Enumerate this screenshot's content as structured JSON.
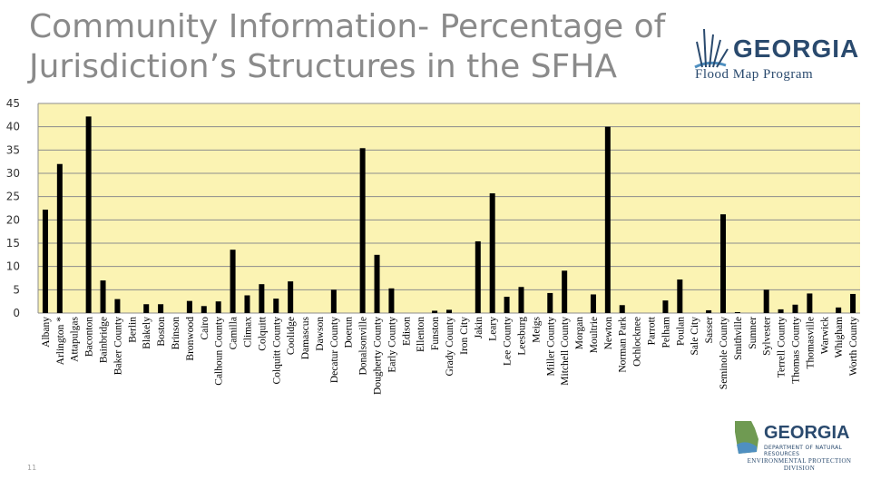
{
  "slide": {
    "title": "Community Information- Percentage of Jurisdiction’s Structures in the SFHA",
    "page_number": "11"
  },
  "logos": {
    "top": {
      "name": "GEORGIA",
      "subtitle": "Flood Map Program"
    },
    "bottom": {
      "name": "GEORGIA",
      "department": "DEPARTMENT OF NATURAL RESOURCES",
      "division": "ENVIRONMENTAL PROTECTION DIVISION"
    }
  },
  "colors": {
    "plot_bg": "#fbf3b3",
    "bar": "#000000",
    "grid": "#8c8c8c",
    "title": "#8a8a8a",
    "logo": "#2a4a6e",
    "logo_water": "#4f8fc0"
  },
  "chart_data": {
    "type": "bar",
    "title": "",
    "xlabel": "",
    "ylabel": "",
    "ylim": [
      0,
      45
    ],
    "yticks": [
      0,
      5,
      10,
      15,
      20,
      25,
      30,
      35,
      40,
      45
    ],
    "grid": true,
    "legend": "none",
    "categories": [
      "Albany",
      "Arlington *",
      "Attapulgas",
      "Baconton",
      "Bainbridge",
      "Baker County",
      "Berlin",
      "Blakely",
      "Boston",
      "Brinson",
      "Bronwood",
      "Cairo",
      "Calhoun County",
      "Camilla",
      "Climax",
      "Colquitt",
      "Colquitt County",
      "Coolidge",
      "Damascus",
      "Dawson",
      "Decatur County",
      "Doerun",
      "Donalsonville",
      "Dougherty County",
      "Early County",
      "Edison",
      "Ellenton",
      "Funston",
      "Grady County",
      "Iron City",
      "Jakin",
      "Leary",
      "Lee County",
      "Leesburg",
      "Meigs",
      "Miller County",
      "Mitchell County",
      "Morgan",
      "Moultrie",
      "Newton",
      "Norman Park",
      "Ochlocknee",
      "Parrott",
      "Pelham",
      "Poulan",
      "Sale City",
      "Sasser",
      "Seminole County",
      "Smithville",
      "Sumner",
      "Sylvester",
      "Terrell County",
      "Thomas County",
      "Thomasville",
      "Warwick",
      "Whigham",
      "Worth County"
    ],
    "values": [
      22.2,
      32,
      0,
      42.2,
      7,
      3,
      0,
      1.9,
      1.9,
      0,
      2.6,
      1.5,
      2.5,
      13.6,
      3.8,
      6.2,
      3.1,
      6.8,
      0,
      0,
      5,
      0,
      35.4,
      12.5,
      5.3,
      0,
      0,
      0.5,
      0.7,
      0,
      15.4,
      25.7,
      3.5,
      5.6,
      0,
      4.3,
      9.1,
      0,
      4,
      40,
      1.7,
      0,
      0,
      2.7,
      7.2,
      0,
      0.6,
      21.2,
      0.2,
      0,
      5,
      0.8,
      1.8,
      4.2,
      0,
      1.2,
      4.1
    ]
  }
}
